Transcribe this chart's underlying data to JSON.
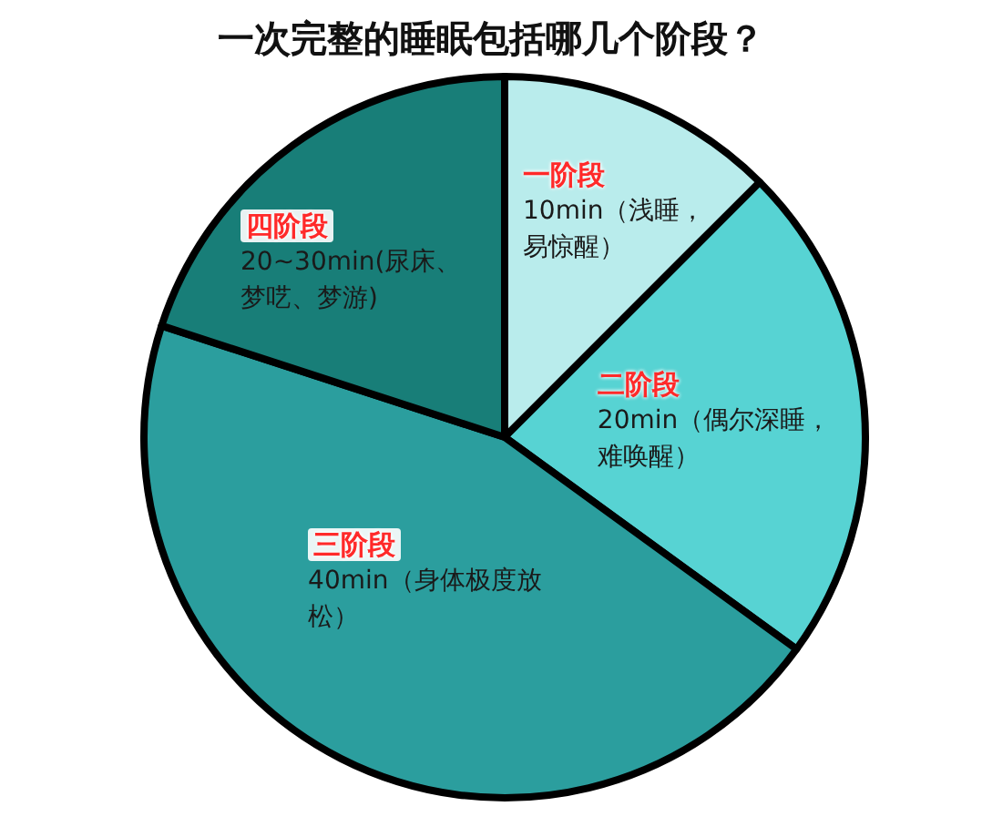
{
  "chart_data": {
    "type": "pie",
    "title": "一次完整的睡眠包括哪几个阶段？",
    "categories": [
      "一阶段",
      "二阶段",
      "三阶段",
      "四阶段"
    ],
    "values": [
      12.5,
      22.5,
      45,
      20
    ],
    "colors": [
      "#b9ecec",
      "#57d3d3",
      "#2b9e9e",
      "#187e78"
    ],
    "annotations": [
      "10min（浅睡，易惊醒）",
      "20min（偶尔深睡，难唤醒）",
      "40min（身体极度放松）",
      "20~30min(尿床、梦呓、梦游)"
    ],
    "legend": false
  }
}
